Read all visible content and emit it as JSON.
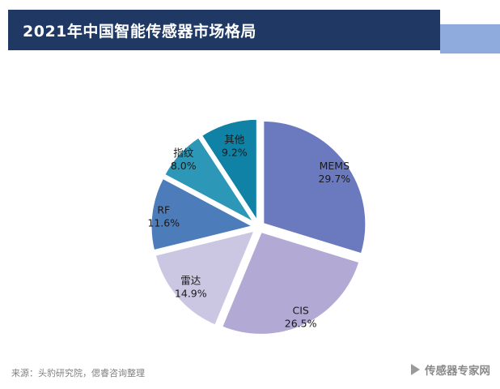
{
  "header": {
    "title": "2021年中国智能传感器市场格局"
  },
  "chart_data": {
    "type": "pie",
    "title": "2021年中国智能传感器市场格局",
    "categories": [
      "MEMS",
      "CIS",
      "雷达",
      "RF",
      "指纹",
      "其他"
    ],
    "values": [
      29.7,
      26.5,
      14.9,
      11.6,
      8.0,
      9.2
    ],
    "unit": "%",
    "colors": [
      "#6B79BE",
      "#B2A9D5",
      "#CBC6E2",
      "#4C7CBA",
      "#2C97B6",
      "#0F82A6"
    ],
    "start_angle_deg": 0,
    "direction": "clockwise",
    "labels_inside": true,
    "legend": "none"
  },
  "footer": {
    "source": "来源：头豹研究院，偲睿咨询整理",
    "watermark": "传感器专家网"
  },
  "colors": {
    "banner_dark": "#1F3864",
    "banner_light": "#8FAADC",
    "label_text": "#1a1a1a",
    "source_text": "#808080",
    "watermark_text": "#8a8a8a"
  }
}
